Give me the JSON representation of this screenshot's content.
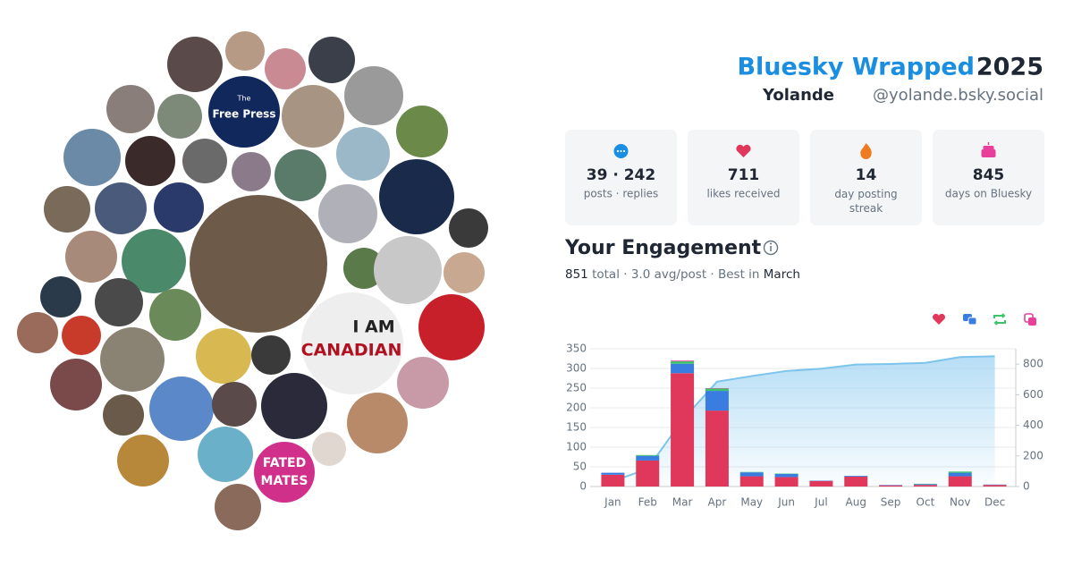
{
  "header": {
    "title": "Bluesky Wrapped",
    "year": "2025",
    "name": "Yolande",
    "handle": "@yolande.bsky.social"
  },
  "stats": [
    {
      "value": "39 · 242",
      "label": "posts · replies"
    },
    {
      "value": "711",
      "label": "likes received"
    },
    {
      "value": "14",
      "label": "day posting streak"
    },
    {
      "value": "845",
      "label": "days on Bluesky"
    }
  ],
  "engagement": {
    "title": "Your Engagement",
    "total": "851",
    "summary": "total · 3.0 avg/post · Best in",
    "best_month": "March"
  },
  "avatar_texts": [
    "The",
    "Free Press",
    "I AM",
    "CANADIAN",
    "FATED",
    "MATES"
  ],
  "chart_data": {
    "type": "bar",
    "categories": [
      "Jan",
      "Feb",
      "Mar",
      "Apr",
      "May",
      "Jun",
      "Jul",
      "Aug",
      "Sep",
      "Oct",
      "Nov",
      "Dec"
    ],
    "series": [
      {
        "color": "#e0385a",
        "values": [
          30,
          66,
          288,
          193,
          26,
          24,
          14,
          25,
          3,
          4,
          26,
          4
        ]
      },
      {
        "color": "#3a7de0",
        "values": [
          5,
          12,
          24,
          50,
          10,
          8,
          1,
          2,
          1,
          2,
          9,
          1
        ]
      },
      {
        "color": "#3cc46a",
        "values": [
          0,
          2,
          6,
          6,
          1,
          1,
          0,
          0,
          0,
          1,
          3,
          0
        ]
      },
      {
        "color": "#e8409a",
        "values": [
          0,
          0,
          2,
          1,
          0,
          0,
          0,
          0,
          0,
          0,
          0,
          0
        ]
      },
      {
        "color": "#7cc4ec",
        "axis": "y2",
        "values": [
          35,
          115,
          435,
          685,
          722,
          755,
          770,
          797,
          801,
          808,
          846,
          851
        ]
      }
    ],
    "ylim": [
      0,
      350
    ],
    "yticks": [
      0,
      50,
      100,
      150,
      200,
      250,
      300,
      350
    ],
    "y2lim": [
      0,
      900
    ],
    "y2ticks": [
      0,
      200,
      400,
      600,
      800
    ],
    "grid": true
  }
}
